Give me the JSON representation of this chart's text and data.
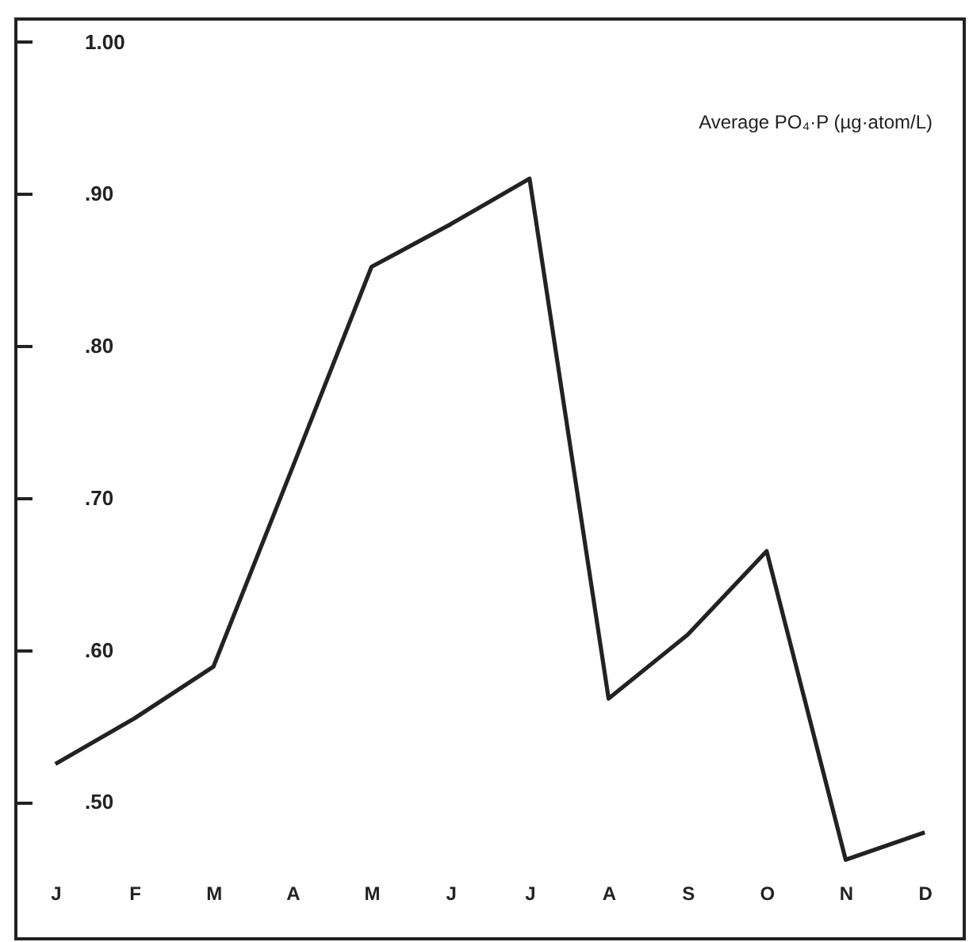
{
  "chart_data": {
    "type": "line",
    "title": "Average PO₄·P (µg·atom/L)",
    "categories": [
      "J",
      "F",
      "M",
      "A",
      "M",
      "J",
      "J",
      "A",
      "S",
      "O",
      "N",
      "D"
    ],
    "series": [
      {
        "color": "#222222",
        "values": [
          0.525,
          0.555,
          0.589,
          0.72,
          0.852,
          0.88,
          0.91,
          0.568,
          0.61,
          0.665,
          0.462,
          0.48
        ]
      }
    ],
    "ylim": [
      0.41,
      1.015
    ],
    "yticks": [
      {
        "value": 0.5,
        "label": ".50"
      },
      {
        "value": 0.6,
        "label": ".60"
      },
      {
        "value": 0.7,
        "label": ".70"
      },
      {
        "value": 0.8,
        "label": ".80"
      },
      {
        "value": 0.9,
        "label": ".90"
      },
      {
        "value": 1.0,
        "label": "1.00"
      }
    ],
    "grid": false,
    "legend": false,
    "marker": "none",
    "line_style": "solid"
  }
}
